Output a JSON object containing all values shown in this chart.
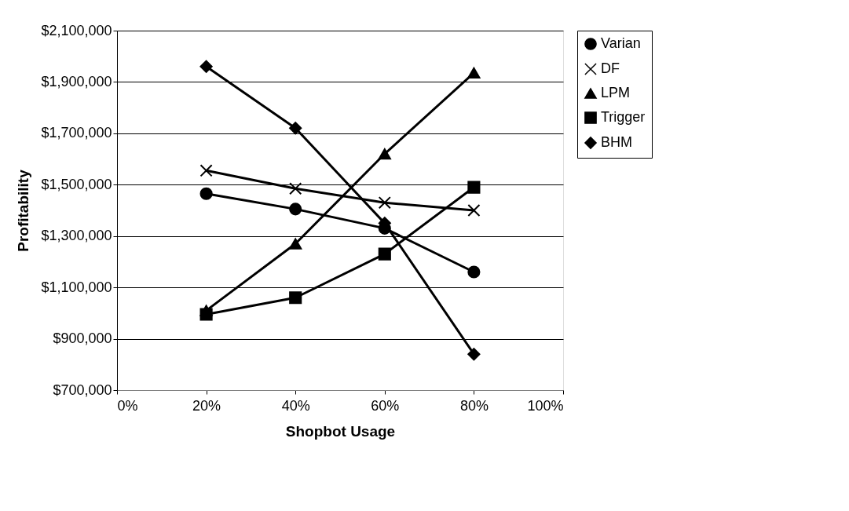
{
  "chart_data": {
    "type": "line",
    "xlabel": "Shopbot Usage",
    "ylabel": "Profitability",
    "x": [
      20,
      40,
      60,
      80
    ],
    "series": [
      {
        "name": "Varian",
        "color": "#000000",
        "marker": "circle",
        "values": [
          1465000,
          1405000,
          1330000,
          1160000
        ]
      },
      {
        "name": "DF",
        "color": "#000000",
        "marker": "cross",
        "values": [
          1555000,
          1485000,
          1430000,
          1400000
        ]
      },
      {
        "name": "LPM",
        "color": "#000000",
        "marker": "triangle",
        "values": [
          1010000,
          1270000,
          1620000,
          1935000
        ]
      },
      {
        "name": "Trigger",
        "color": "#000000",
        "marker": "square",
        "values": [
          995000,
          1060000,
          1230000,
          1490000
        ]
      },
      {
        "name": "BHM",
        "color": "#000000",
        "marker": "diamond",
        "values": [
          1960000,
          1720000,
          1350000,
          840000
        ]
      }
    ],
    "xlim": [
      0,
      100
    ],
    "xticks": [
      {
        "value": 0,
        "label": "0%"
      },
      {
        "value": 20,
        "label": "20%"
      },
      {
        "value": 40,
        "label": "40%"
      },
      {
        "value": 60,
        "label": "60%"
      },
      {
        "value": 80,
        "label": "80%"
      },
      {
        "value": 100,
        "label": "100%"
      }
    ],
    "ylim": [
      700000,
      2100000
    ],
    "yticks": [
      {
        "value": 700000,
        "label": "$700,000"
      },
      {
        "value": 900000,
        "label": "$900,000"
      },
      {
        "value": 1100000,
        "label": "$1,100,000"
      },
      {
        "value": 1300000,
        "label": "$1,300,000"
      },
      {
        "value": 1500000,
        "label": "$1,500,000"
      },
      {
        "value": 1700000,
        "label": "$1,700,000"
      },
      {
        "value": 1900000,
        "label": "$1,900,000"
      },
      {
        "value": 2100000,
        "label": "$2,100,000"
      }
    ],
    "grid": "y",
    "legend": "right",
    "line_style": "solid"
  }
}
